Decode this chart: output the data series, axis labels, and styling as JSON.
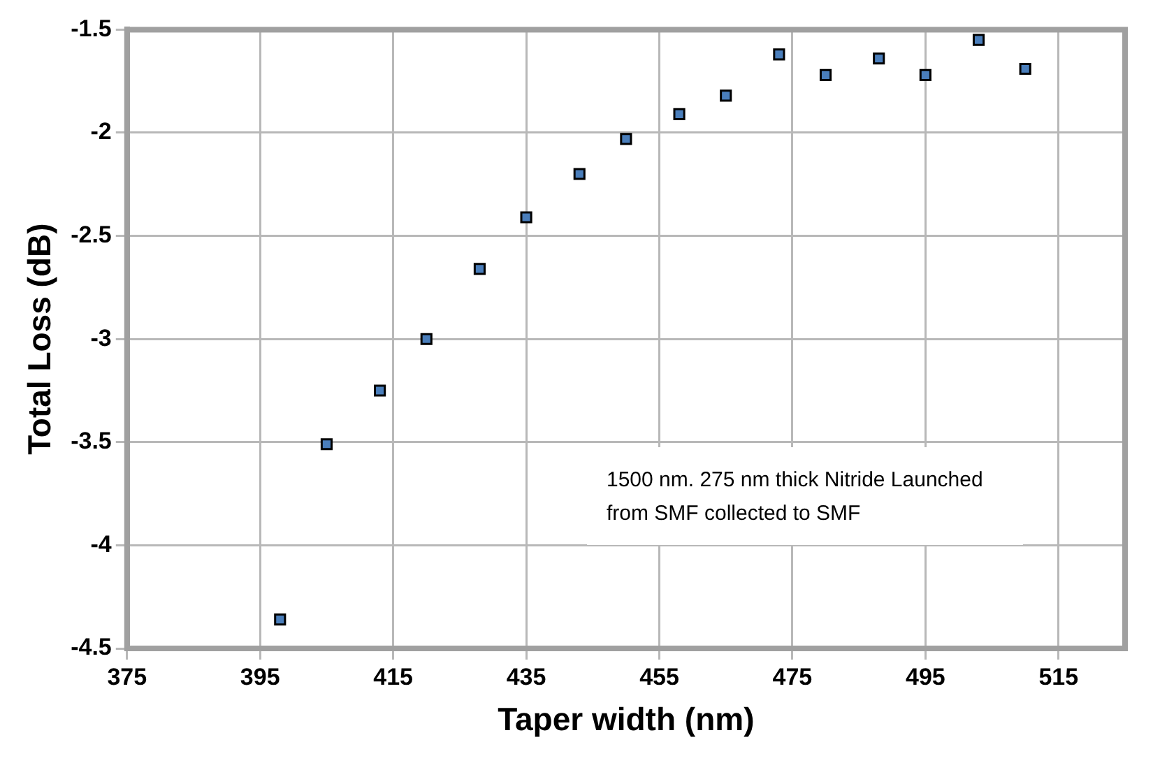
{
  "chart_data": {
    "type": "scatter",
    "xlabel": "Taper width (nm)",
    "ylabel": "Total Loss (dB)",
    "x": [
      398,
      405,
      413,
      420,
      428,
      435,
      443,
      450,
      458,
      465,
      473,
      480,
      488,
      495,
      503,
      510
    ],
    "series": [
      {
        "color": "#4a7ebb",
        "values": [
          -4.36,
          -3.51,
          -3.25,
          -3.0,
          -2.66,
          -2.41,
          -2.2,
          -2.03,
          -1.91,
          -1.82,
          -1.62,
          -1.72,
          -1.64,
          -1.72,
          -1.55,
          -1.69
        ]
      }
    ],
    "xlim": [
      375,
      525
    ],
    "xticks": [
      375,
      395,
      415,
      435,
      455,
      475,
      495,
      515
    ],
    "ylim": [
      -4.5,
      -1.5
    ],
    "yticks": [
      -4.5,
      -4,
      -3.5,
      -3,
      -2.5,
      -2,
      -1.5
    ],
    "grid": true,
    "legend": false,
    "marker": "square",
    "annotations": [
      "1500 nm. 275 nm thick Nitride Launched from SMF collected to SMF"
    ]
  }
}
